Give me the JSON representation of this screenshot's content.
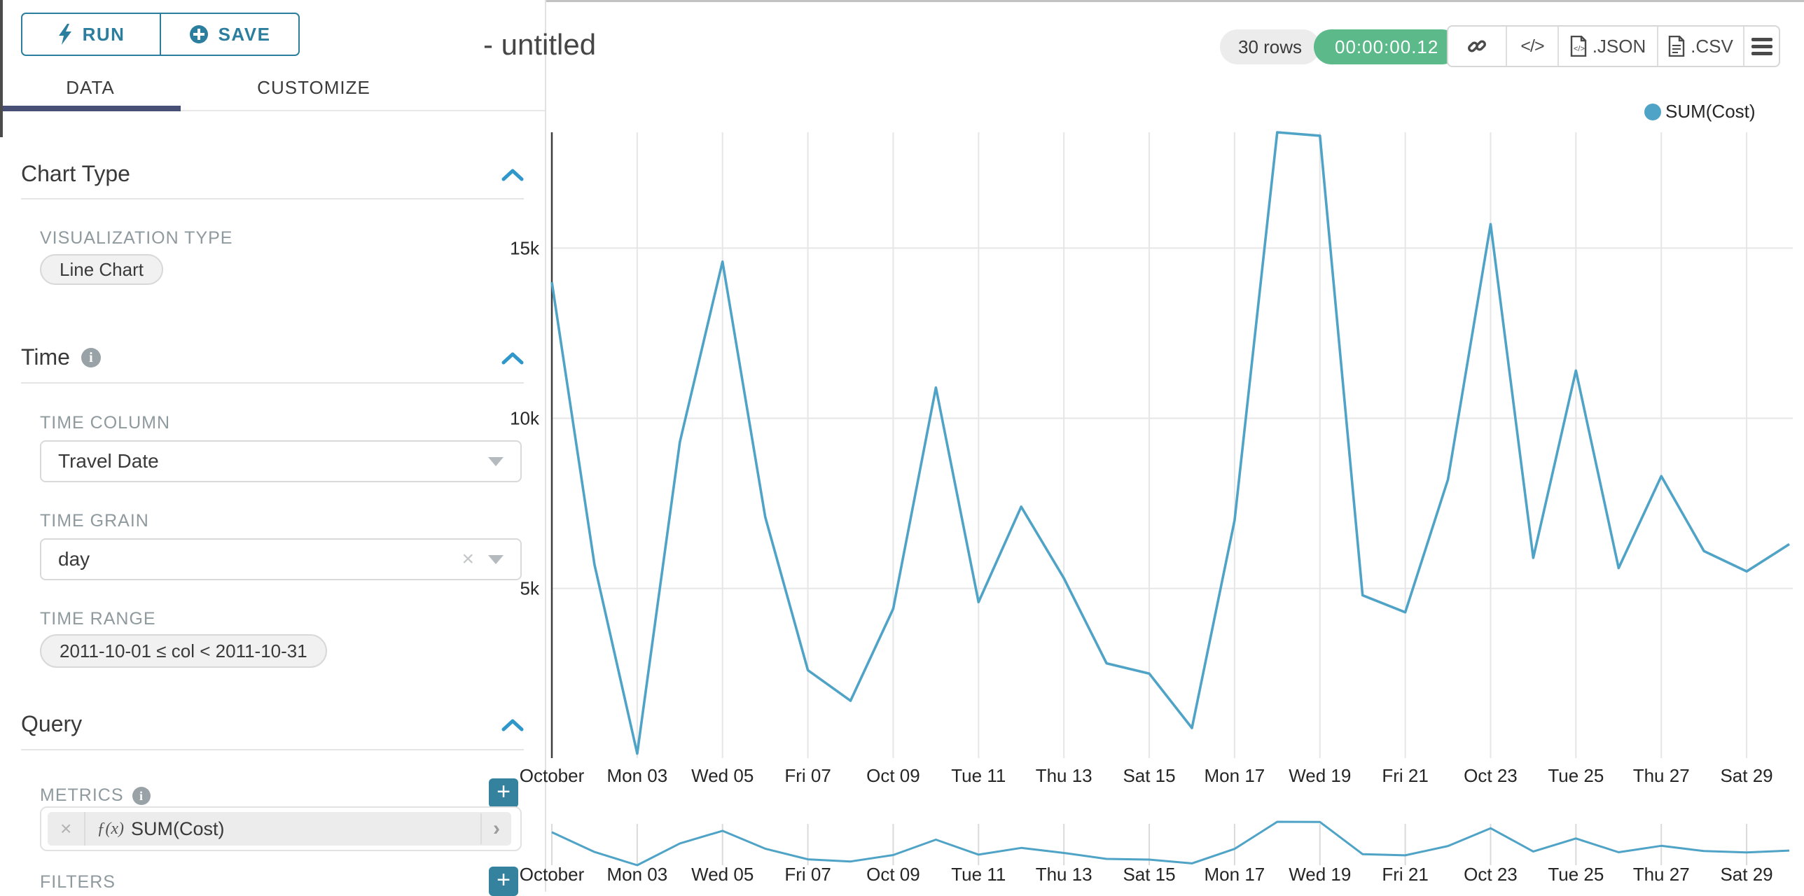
{
  "toolbar": {
    "run_label": "RUN",
    "save_label": "SAVE"
  },
  "tabs": {
    "data": "DATA",
    "customize": "CUSTOMIZE"
  },
  "sections": {
    "chart_type": {
      "title": "Chart Type",
      "viz_type_label": "VISUALIZATION TYPE",
      "viz_type_value": "Line Chart"
    },
    "time": {
      "title": "Time",
      "time_column_label": "TIME COLUMN",
      "time_column_value": "Travel Date",
      "time_grain_label": "TIME GRAIN",
      "time_grain_value": "day",
      "time_range_label": "TIME RANGE",
      "time_range_value": "2011-10-01 ≤ col < 2011-10-31"
    },
    "query": {
      "title": "Query",
      "metrics_label": "METRICS",
      "metric_fx": "ƒ(x)",
      "metric_value": "SUM(Cost)",
      "filters_label": "FILTERS"
    }
  },
  "header": {
    "title": "- untitled",
    "rows_badge": "30 rows",
    "timer_badge": "00:00:00.12",
    "code_label": "</>",
    "json_label": ".JSON",
    "csv_label": ".CSV"
  },
  "legend": {
    "label": "SUM(Cost)"
  },
  "colors": {
    "accent": "#2b7e9d",
    "chevron": "#2f97c9",
    "line": "#4fa3c6",
    "timer_green": "#5bb98a",
    "tab_underline": "#474f75",
    "grid": "#e6e6e6",
    "axis_line": "#3d3d3d",
    "mini_tick": "#dadada"
  },
  "chart_data": {
    "type": "line",
    "title": "",
    "xlabel": "",
    "ylabel": "",
    "x": [
      "2011-10-01",
      "2011-10-02",
      "2011-10-03",
      "2011-10-04",
      "2011-10-05",
      "2011-10-06",
      "2011-10-07",
      "2011-10-08",
      "2011-10-09",
      "2011-10-10",
      "2011-10-11",
      "2011-10-12",
      "2011-10-13",
      "2011-10-14",
      "2011-10-15",
      "2011-10-16",
      "2011-10-17",
      "2011-10-18",
      "2011-10-19",
      "2011-10-20",
      "2011-10-21",
      "2011-10-22",
      "2011-10-23",
      "2011-10-24",
      "2011-10-25",
      "2011-10-26",
      "2011-10-27",
      "2011-10-28",
      "2011-10-29",
      "2011-10-30"
    ],
    "series": [
      {
        "name": "SUM(Cost)",
        "values": [
          14000,
          5700,
          150,
          9300,
          14600,
          7100,
          2600,
          1700,
          4400,
          10900,
          4600,
          7400,
          5300,
          2800,
          2500,
          900,
          7000,
          18400,
          18300,
          4800,
          4300,
          8200,
          15700,
          5900,
          11400,
          5600,
          8300,
          6100,
          5500,
          6300
        ]
      }
    ],
    "x_tick_labels": [
      "October",
      "Mon 03",
      "Wed 05",
      "Fri 07",
      "Oct 09",
      "Tue 11",
      "Thu 13",
      "Sat 15",
      "Mon 17",
      "Wed 19",
      "Fri 21",
      "Oct 23",
      "Tue 25",
      "Thu 27",
      "Sat 29"
    ],
    "y_tick_labels": [
      "5k",
      "10k",
      "15k"
    ],
    "y_tick_values": [
      5000,
      10000,
      15000
    ],
    "ylim": [
      140,
      18400
    ],
    "grid": true,
    "legend_position": "top-right",
    "has_range_selector_mini_chart": true
  }
}
